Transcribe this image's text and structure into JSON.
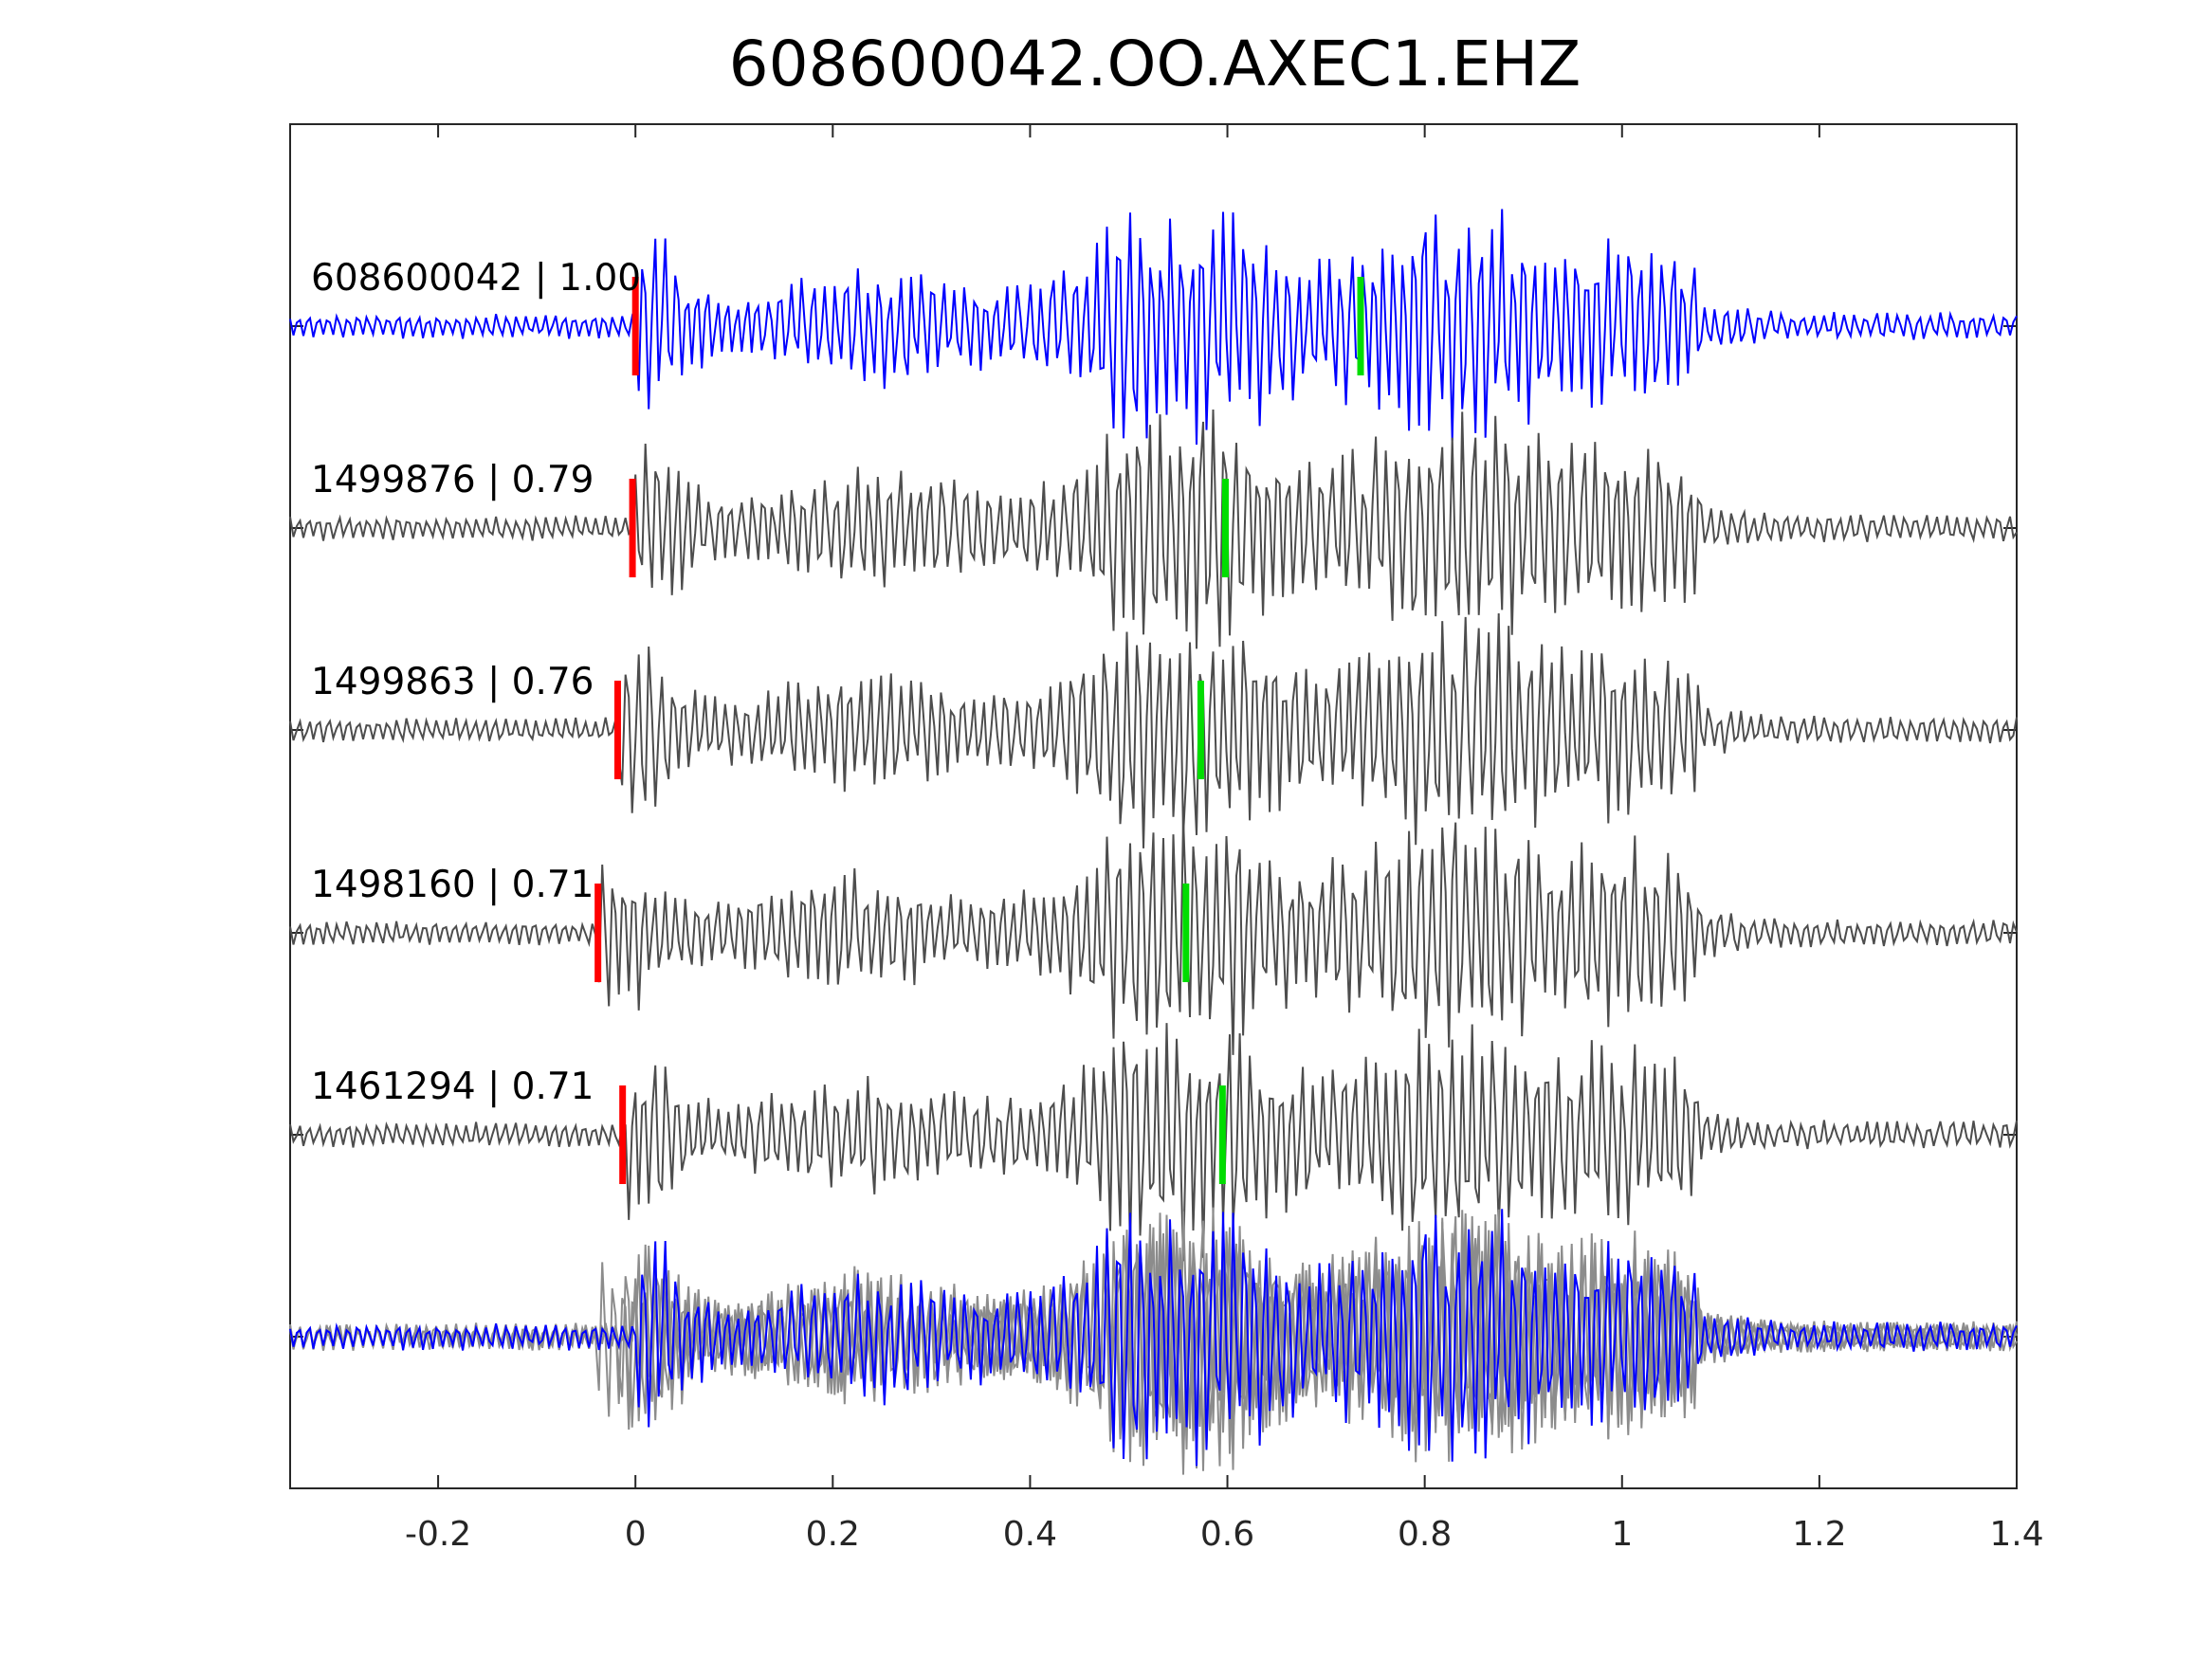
{
  "chart_data": {
    "type": "line",
    "title": "608600042.OO.AXEC1.EHZ",
    "xlabel": "",
    "ylabel": "",
    "xlim": [
      -0.35,
      1.4
    ],
    "xticks": [
      -0.2,
      0,
      0.2,
      0.4,
      0.6,
      0.8,
      1.0,
      1.2,
      1.4
    ],
    "xtick_labels": [
      "-0.2",
      "0",
      "0.2",
      "0.4",
      "0.6",
      "0.8",
      "1",
      "1.2",
      "1.4"
    ],
    "grid": false,
    "colors": {
      "reference": "#0000ff",
      "match": "#4d4d4d",
      "overlay_match": "#8c8c8c",
      "p_pick": "#ff0000",
      "s_pick": "#00dd00",
      "axes": "#262626"
    },
    "series": [
      {
        "label": "608600042 | 1.00",
        "reference": true,
        "p_pick": 0.0,
        "s_pick": 0.735
      },
      {
        "label": "1499876 | 0.79",
        "reference": false,
        "p_pick": -0.003,
        "s_pick": 0.598
      },
      {
        "label": "1499863 | 0.76",
        "reference": false,
        "p_pick": -0.018,
        "s_pick": 0.573
      },
      {
        "label": "1498160 | 0.71",
        "reference": false,
        "p_pick": -0.038,
        "s_pick": 0.558
      },
      {
        "label": "1461294 | 0.71",
        "reference": false,
        "p_pick": -0.013,
        "s_pick": 0.595
      }
    ],
    "stack": {
      "description": "",
      "shows_all_traces": true
    }
  }
}
